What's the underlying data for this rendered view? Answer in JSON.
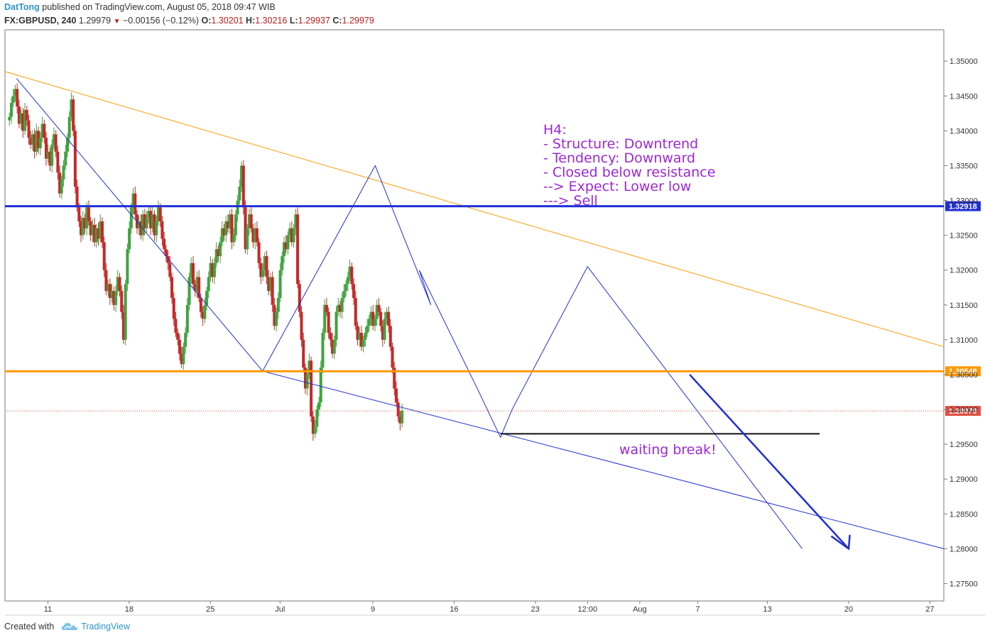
{
  "header": {
    "author": "DatTong",
    "published_text": "published on TradingView.com, August 05, 2018 09:47 WIB",
    "symbol": "FX:GBPUSD, 240",
    "last": "1.29979",
    "change": "−0.00156 (−0.12%)",
    "o_label": "O:",
    "o_value": "1.30201",
    "h_label": "H:",
    "h_value": "1.30216",
    "l_label": "L:",
    "l_value": "1.29937",
    "c_label": "C:",
    "c_value": "1.29979"
  },
  "footer": {
    "created_with": "Created with",
    "brand": "TradingView"
  },
  "colors": {
    "up": "#3fa33f",
    "down": "#c62828",
    "blue": "#1f2fd6",
    "orange": "#ff9800",
    "purple": "#9c27d6",
    "price_tag": "#e04f42"
  },
  "chart_data": {
    "type": "candlestick",
    "y_range": [
      1.2725,
      1.3545
    ],
    "y_ticks": [
      "1.35000",
      "1.34500",
      "1.34000",
      "1.33500",
      "1.33000",
      "1.32500",
      "1.32000",
      "1.31500",
      "1.31000",
      "1.30500",
      "1.30000",
      "1.29500",
      "1.29000",
      "1.28500",
      "1.28000",
      "1.27500"
    ],
    "x_labels": [
      {
        "label": "11",
        "day": 11
      },
      {
        "label": "18",
        "day": 18
      },
      {
        "label": "25",
        "day": 25
      },
      {
        "label": "Jul",
        "day": 31
      },
      {
        "label": "9",
        "day": 39
      },
      {
        "label": "16",
        "day": 46
      },
      {
        "label": "23",
        "day": 53
      },
      {
        "label": "12:00",
        "day": 57.5
      },
      {
        "label": "Aug",
        "day": 62
      },
      {
        "label": "7",
        "day": 67
      },
      {
        "label": "13",
        "day": 73
      },
      {
        "label": "20",
        "day": 80
      },
      {
        "label": "27",
        "day": 87
      }
    ],
    "x_day_range": [
      7.3,
      88.2
    ],
    "candles_per_day": 6,
    "closes": [
      1.342,
      1.344,
      1.345,
      1.346,
      1.3435,
      1.341,
      1.3425,
      1.34,
      1.343,
      1.3415,
      1.339,
      1.338,
      1.3395,
      1.337,
      1.34,
      1.3375,
      1.339,
      1.341,
      1.339,
      1.336,
      1.337,
      1.335,
      1.338,
      1.3395,
      1.337,
      1.334,
      1.331,
      1.333,
      1.335,
      1.337,
      1.339,
      1.342,
      1.3445,
      1.34,
      1.332,
      1.329,
      1.327,
      1.325,
      1.3275,
      1.326,
      1.329,
      1.327,
      1.325,
      1.3265,
      1.324,
      1.326,
      1.3245,
      1.327,
      1.324,
      1.32,
      1.317,
      1.318,
      1.316,
      1.317,
      1.315,
      1.317,
      1.319,
      1.317,
      1.314,
      1.31,
      1.318,
      1.323,
      1.326,
      1.329,
      1.331,
      1.328,
      1.326,
      1.327,
      1.325,
      1.328,
      1.326,
      1.3275,
      1.3285,
      1.326,
      1.328,
      1.325,
      1.327,
      1.329,
      1.327,
      1.3245,
      1.323,
      1.322,
      1.321,
      1.319,
      1.316,
      1.313,
      1.311,
      1.31,
      1.308,
      1.3065,
      1.309,
      1.311,
      1.315,
      1.319,
      1.321,
      1.318,
      1.317,
      1.319,
      1.316,
      1.314,
      1.313,
      1.315,
      1.317,
      1.319,
      1.321,
      1.319,
      1.321,
      1.323,
      1.322,
      1.324,
      1.326,
      1.325,
      1.327,
      1.326,
      1.328,
      1.324,
      1.325,
      1.328,
      1.33,
      1.332,
      1.335,
      1.329,
      1.323,
      1.326,
      1.328,
      1.326,
      1.324,
      1.326,
      1.324,
      1.321,
      1.319,
      1.32,
      1.322,
      1.319,
      1.317,
      1.319,
      1.315,
      1.312,
      1.314,
      1.316,
      1.32,
      1.322,
      1.324,
      1.323,
      1.325,
      1.326,
      1.324,
      1.326,
      1.328,
      1.318,
      1.314,
      1.31,
      1.306,
      1.303,
      1.305,
      1.307,
      1.299,
      1.2965,
      1.2975,
      1.3,
      1.301,
      1.306,
      1.311,
      1.315,
      1.314,
      1.311,
      1.31,
      1.308,
      1.31,
      1.314,
      1.315,
      1.314,
      1.316,
      1.317,
      1.318,
      1.319,
      1.3205,
      1.318,
      1.316,
      1.312,
      1.31,
      1.311,
      1.309,
      1.31,
      1.311,
      1.312,
      1.313,
      1.314,
      1.312,
      1.313,
      1.315,
      1.314,
      1.312,
      1.31,
      1.313,
      1.314,
      1.312,
      1.309,
      1.306,
      1.303,
      1.301,
      1.299,
      1.298,
      1.2998
    ],
    "horizontal_levels": [
      {
        "price": 1.32918,
        "label": "1.32918",
        "color": "#1f2fd6"
      },
      {
        "price": 1.30548,
        "label": "1.30548",
        "color": "#ff9800"
      },
      {
        "price": 1.29979,
        "label": "1.29979",
        "color": "#e04f42"
      }
    ],
    "annotation": {
      "lines": [
        "H4:",
        "- Structure: Downtrend",
        "- Tendency: Downward",
        "- Closed below resistance",
        "--> Expect: Lower low",
        "   ---> Sell"
      ],
      "note": "waiting break!"
    }
  }
}
